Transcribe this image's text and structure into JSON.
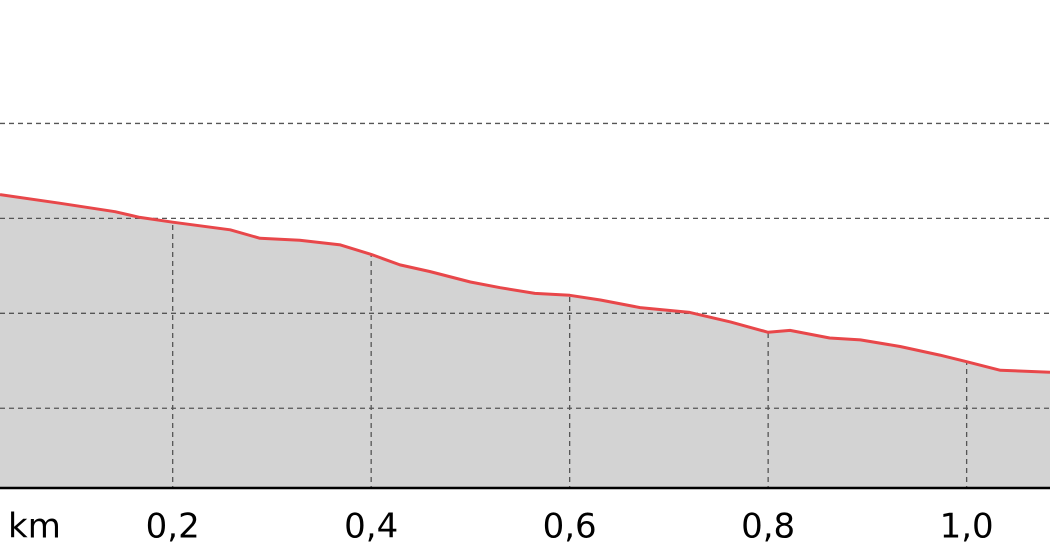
{
  "chart_data": {
    "type": "area",
    "x_label": "km",
    "x": [
      0.026,
      0.086,
      0.142,
      0.167,
      0.2,
      0.258,
      0.288,
      0.328,
      0.369,
      0.4,
      0.429,
      0.459,
      0.5,
      0.53,
      0.565,
      0.6,
      0.631,
      0.671,
      0.721,
      0.762,
      0.8,
      0.822,
      0.862,
      0.893,
      0.933,
      0.973,
      1.0,
      1.034,
      1.084
    ],
    "values": [
      3.25,
      3.16,
      3.07,
      3.01,
      2.96,
      2.88,
      2.79,
      2.77,
      2.72,
      2.62,
      2.51,
      2.44,
      2.33,
      2.27,
      2.21,
      2.19,
      2.14,
      2.06,
      2.01,
      1.91,
      1.8,
      1.82,
      1.74,
      1.72,
      1.65,
      1.56,
      1.49,
      1.4,
      1.38
    ],
    "line_color": "#e8474a",
    "fill_color": "#d3d3d3",
    "xlim": [
      0.026,
      1.084
    ],
    "xticks": [
      {
        "value": 0.2,
        "label": "0,2"
      },
      {
        "value": 0.4,
        "label": "0,4"
      },
      {
        "value": 0.6,
        "label": "0,6"
      },
      {
        "value": 0.8,
        "label": "0,8"
      },
      {
        "value": 1.0,
        "label": "1,0"
      }
    ],
    "ylim": [
      0.16,
      5.3
    ],
    "yticks": [
      1,
      2,
      3,
      4
    ],
    "grid": true
  }
}
